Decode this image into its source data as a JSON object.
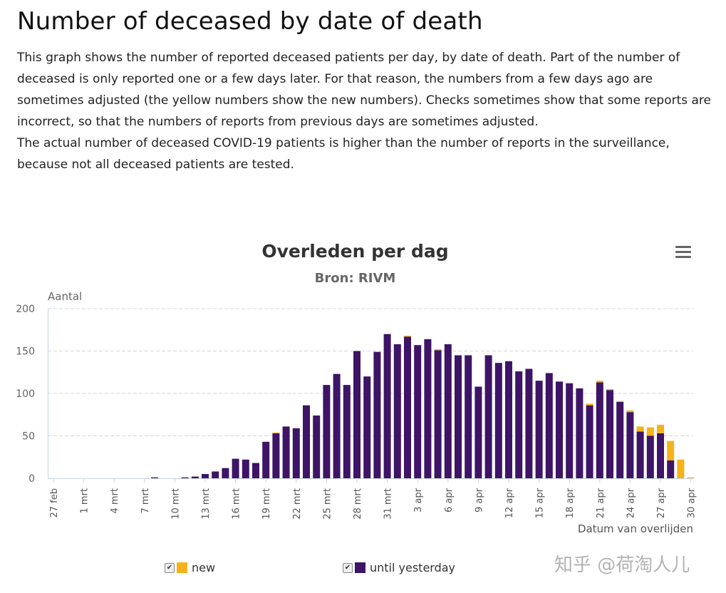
{
  "page": {
    "title": "Number of deceased by date of death",
    "paragraphs": [
      "This graph shows the number of reported deceased patients per day, by date of death. Part of the number of deceased is only reported one or a few days later. For that reason, the numbers from a few days ago are sometimes adjusted (the yellow numbers show the new numbers). Checks sometimes show that some reports are incorrect, so that the numbers of reports from previous days are sometimes adjusted.",
      "The actual number of deceased COVID-19 patients is higher than the number of reports in the surveillance, because not all deceased patients are tested."
    ]
  },
  "chart_data": {
    "type": "bar",
    "stacked": true,
    "title": "Overleden per dag",
    "subtitle": "Bron: RIVM",
    "ylabel": "Aantal",
    "xlabel": "Datum van overlijden",
    "ylim": [
      0,
      200
    ],
    "yticks": [
      0,
      50,
      100,
      150,
      200
    ],
    "grid": true,
    "legend_position": "bottom",
    "categories": [
      "27 feb",
      "28 feb",
      "29 feb",
      "1 mrt",
      "2 mrt",
      "3 mrt",
      "4 mrt",
      "5 mrt",
      "6 mrt",
      "7 mrt",
      "8 mrt",
      "9 mrt",
      "10 mrt",
      "11 mrt",
      "12 mrt",
      "13 mrt",
      "14 mrt",
      "15 mrt",
      "16 mrt",
      "17 mrt",
      "18 mrt",
      "19 mrt",
      "20 mrt",
      "21 mrt",
      "22 mrt",
      "23 mrt",
      "24 mrt",
      "25 mrt",
      "26 mrt",
      "27 mrt",
      "28 mrt",
      "29 mrt",
      "30 mrt",
      "31 mrt",
      "1 apr",
      "2 apr",
      "3 apr",
      "4 apr",
      "5 apr",
      "6 apr",
      "7 apr",
      "8 apr",
      "9 apr",
      "10 apr",
      "11 apr",
      "12 apr",
      "13 apr",
      "14 apr",
      "15 apr",
      "16 apr",
      "17 apr",
      "18 apr",
      "19 apr",
      "20 apr",
      "21 apr",
      "22 apr",
      "23 apr",
      "24 apr",
      "25 apr",
      "26 apr",
      "27 apr",
      "28 apr",
      "29 apr",
      "30 apr"
    ],
    "tick_labels": [
      "27 feb",
      "1 mrt",
      "4 mrt",
      "7 mrt",
      "10 mrt",
      "13 mrt",
      "16 mrt",
      "19 mrt",
      "22 mrt",
      "25 mrt",
      "28 mrt",
      "31 mrt",
      "3 apr",
      "6 apr",
      "9 apr",
      "12 apr",
      "15 apr",
      "18 apr",
      "21 apr",
      "24 apr",
      "27 apr",
      "30 apr"
    ],
    "series": [
      {
        "name": "until yesterday",
        "color": "#3d1466",
        "values": [
          0,
          0,
          0,
          0,
          0,
          0,
          0,
          0,
          0,
          0,
          1,
          0,
          0,
          1,
          2,
          5,
          8,
          12,
          23,
          22,
          18,
          43,
          53,
          61,
          59,
          86,
          74,
          110,
          123,
          110,
          150,
          120,
          149,
          170,
          158,
          167,
          157,
          164,
          151,
          158,
          145,
          145,
          108,
          145,
          136,
          138,
          126,
          129,
          115,
          124,
          114,
          112,
          106,
          86,
          113,
          104,
          90,
          78,
          55,
          50,
          53,
          21,
          0,
          0
        ]
      },
      {
        "name": "new",
        "color": "#f5b21a",
        "values": [
          0,
          0,
          0,
          0,
          0,
          0,
          0,
          0,
          0,
          0,
          0,
          0,
          0,
          0,
          0,
          0,
          0,
          0,
          0,
          0,
          0,
          0,
          1,
          0,
          0,
          0,
          0,
          0,
          0,
          0,
          0,
          0,
          0,
          0,
          0,
          1,
          0,
          0,
          1,
          0,
          0,
          0,
          0,
          0,
          0,
          0,
          0,
          0,
          0,
          0,
          0,
          0,
          0,
          2,
          2,
          1,
          1,
          2,
          6,
          10,
          10,
          23,
          22,
          1
        ]
      }
    ]
  },
  "legend": [
    {
      "label": "new",
      "check": "✔",
      "color": "#f5b21a"
    },
    {
      "label": "until yesterday",
      "check": "✔",
      "color": "#3d1466"
    }
  ],
  "menu": {
    "icon": "hamburger-menu-icon"
  },
  "watermark": {
    "text": "知乎 @荷淘人儿"
  }
}
